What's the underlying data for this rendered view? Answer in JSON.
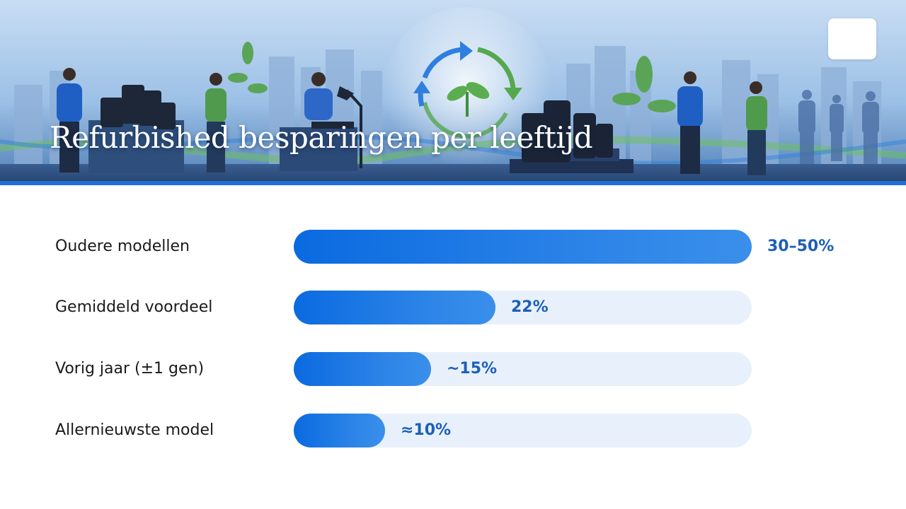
{
  "header": {
    "title": "Refurbished besparingen per leeftijd",
    "logo_icon": "globe-logo-icon",
    "illustration": "refurbished-phones-recycling-illustration"
  },
  "colors": {
    "accent": "#1f6fd6",
    "bar_fill": "#0a6ae0",
    "bar_track": "#e8f1fb",
    "value_text": "#1d5fb8"
  },
  "chart_data": {
    "type": "bar",
    "orientation": "horizontal",
    "title": "Refurbished besparingen per leeftijd",
    "categories": [
      "Oudere modellen",
      "Gemiddeld voordeel",
      "Vorig jaar (±1 gen)",
      "Allernieuwste model"
    ],
    "values": [
      50,
      22,
      15,
      10
    ],
    "value_labels": [
      "30–50%",
      "22%",
      "~15%",
      "≈10%"
    ],
    "unit": "%",
    "xlim": [
      0,
      50
    ],
    "grid": false,
    "legend": "none"
  }
}
